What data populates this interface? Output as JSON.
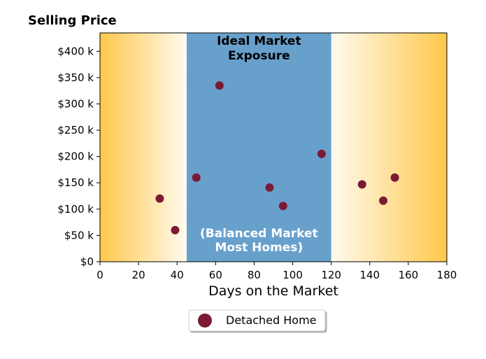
{
  "chart_data": {
    "type": "scatter",
    "title": "Selling Price",
    "xlabel": "Days on the Market",
    "ylabel": "",
    "xlim": [
      0,
      180
    ],
    "ylim": [
      0,
      435000
    ],
    "x_ticks": [
      0,
      20,
      40,
      60,
      80,
      100,
      120,
      140,
      160,
      180
    ],
    "y_ticks": [
      0,
      50000,
      100000,
      150000,
      200000,
      250000,
      300000,
      350000,
      400000
    ],
    "y_tick_labels": [
      "$0",
      "$50 k",
      "$100 k",
      "$150 k",
      "$200 k",
      "$250 k",
      "$300 k",
      "$350 k",
      "$400 k"
    ],
    "grid": false,
    "legend_position": "below",
    "series": [
      {
        "name": "Detached Home",
        "color": "#7b1a35",
        "points": [
          {
            "x": 31,
            "y": 120000
          },
          {
            "x": 39,
            "y": 60000
          },
          {
            "x": 50,
            "y": 160000
          },
          {
            "x": 62,
            "y": 335000
          },
          {
            "x": 88,
            "y": 141000
          },
          {
            "x": 95,
            "y": 106000
          },
          {
            "x": 115,
            "y": 205000
          },
          {
            "x": 136,
            "y": 147000
          },
          {
            "x": 147,
            "y": 116000
          },
          {
            "x": 153,
            "y": 160000
          }
        ]
      }
    ],
    "bands": [
      {
        "type": "ideal",
        "x_start": 45,
        "x_end": 120,
        "color": "#68a0cc"
      }
    ],
    "annotations": [
      {
        "text_lines": [
          "Ideal Market",
          "Exposure"
        ],
        "color": "#000000"
      },
      {
        "text_lines": [
          "(Balanced Market",
          "Most Homes)"
        ],
        "color": "#ffffff"
      }
    ],
    "side_gradient_colors": {
      "edge": "#ffc84a",
      "inner": "#fffaf0"
    }
  }
}
